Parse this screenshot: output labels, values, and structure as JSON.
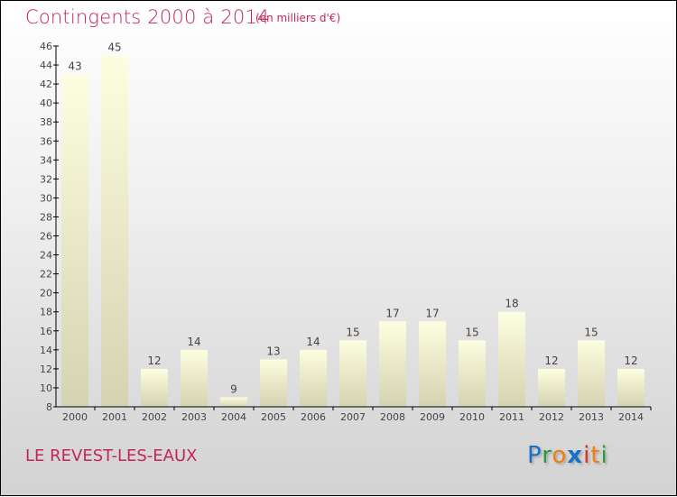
{
  "chart_data": {
    "type": "bar",
    "title": "Contingents 2000 à 2014",
    "subtitle": "(en milliers d'€)",
    "categories": [
      "2000",
      "2001",
      "2002",
      "2003",
      "2004",
      "2005",
      "2006",
      "2007",
      "2008",
      "2009",
      "2010",
      "2011",
      "2012",
      "2013",
      "2014"
    ],
    "values": [
      43,
      45,
      12,
      14,
      9,
      13,
      14,
      15,
      17,
      17,
      15,
      18,
      12,
      15,
      12
    ],
    "ylim": [
      8,
      46
    ],
    "yticks": [
      8,
      10,
      12,
      14,
      16,
      18,
      20,
      22,
      24,
      26,
      28,
      30,
      32,
      34,
      36,
      38,
      40,
      42,
      44,
      46
    ],
    "xlabel": "",
    "ylabel": "",
    "colors": {
      "bar_top": "#fdfde0",
      "bar_bottom": "#d6d6b4",
      "title": "#c2255c"
    }
  },
  "footer": {
    "commune": "LE REVEST-LES-EAUX",
    "logo": "Proxiti"
  }
}
